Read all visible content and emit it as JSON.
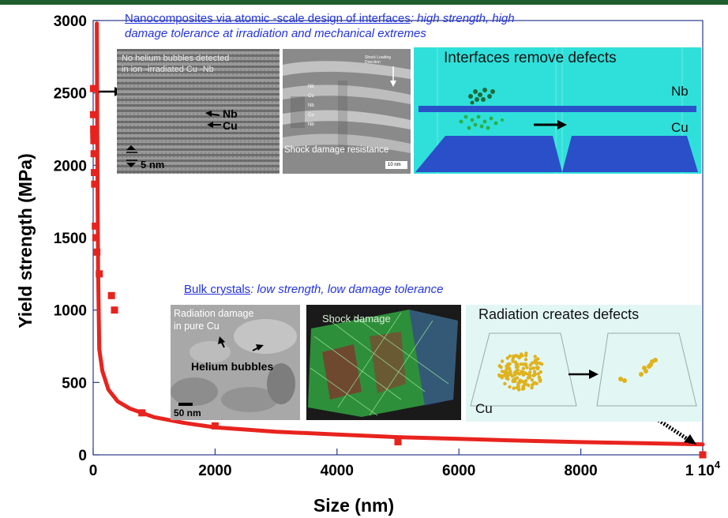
{
  "chart_data": {
    "type": "scatter",
    "xlabel": "Size (nm)",
    "ylabel": "Yield strength (MPa)",
    "xlim": [
      0,
      10000
    ],
    "ylim": [
      0,
      3000
    ],
    "x_ticks": [
      "0",
      "2000",
      "4000",
      "6000",
      "8000",
      "1 10"
    ],
    "x_tick_last_exponent": "4",
    "y_ticks": [
      "0",
      "500",
      "1000",
      "1500",
      "2000",
      "2500",
      "3000"
    ],
    "grid": false,
    "series": [
      {
        "marker": "square",
        "color": "#e8231e",
        "points": [
          {
            "x": 5,
            "y": 2530
          },
          {
            "x": 5,
            "y": 2350
          },
          {
            "x": 8,
            "y": 2250
          },
          {
            "x": 10,
            "y": 2210
          },
          {
            "x": 12,
            "y": 2170
          },
          {
            "x": 15,
            "y": 2080
          },
          {
            "x": 20,
            "y": 1950
          },
          {
            "x": 25,
            "y": 1870
          },
          {
            "x": 35,
            "y": 1580
          },
          {
            "x": 45,
            "y": 1500
          },
          {
            "x": 60,
            "y": 1400
          },
          {
            "x": 100,
            "y": 1250
          },
          {
            "x": 300,
            "y": 1100
          },
          {
            "x": 350,
            "y": 1000
          },
          {
            "x": 800,
            "y": 290
          },
          {
            "x": 2000,
            "y": 200
          },
          {
            "x": 5000,
            "y": 90
          },
          {
            "x": 10000,
            "y": 0
          }
        ]
      },
      {
        "type": "line",
        "color": "#e8231e",
        "points": [
          {
            "x": 60,
            "y": 2980
          },
          {
            "x": 70,
            "y": 2000
          },
          {
            "x": 80,
            "y": 1300
          },
          {
            "x": 100,
            "y": 730
          },
          {
            "x": 150,
            "y": 580
          },
          {
            "x": 250,
            "y": 450
          },
          {
            "x": 400,
            "y": 370
          },
          {
            "x": 600,
            "y": 320
          },
          {
            "x": 1000,
            "y": 260
          },
          {
            "x": 1500,
            "y": 220
          },
          {
            "x": 2000,
            "y": 190
          },
          {
            "x": 3000,
            "y": 160
          },
          {
            "x": 4000,
            "y": 140
          },
          {
            "x": 5000,
            "y": 122
          },
          {
            "x": 6000,
            "y": 110
          },
          {
            "x": 7000,
            "y": 98
          },
          {
            "x": 8000,
            "y": 88
          },
          {
            "x": 9000,
            "y": 80
          },
          {
            "x": 10000,
            "y": 72
          }
        ]
      }
    ],
    "annotations": {
      "nano_caption_link": "Nanocomposites   via atomic -scale design of interfaces",
      "nano_caption_rest": ": high strength, high",
      "nano_caption_line2": "damage tolerance at irradiation and mechanical extremes",
      "bulk_caption_link": "Bulk crystals",
      "bulk_caption_rest": ": low strength, low damage tolerance",
      "tem_nano_text1": "No helium bubbles detected",
      "tem_nano_text2": "in ion -irradiated Cu    -Nb",
      "tem_nano_nb": "Nb",
      "tem_nano_cu": "Cu",
      "tem_nano_scale": "5 nm",
      "shock_nano_label": "Shock damage resistance",
      "shock_nano_small": "Shock Loading Direction",
      "shock_nano_layers": [
        "Nb",
        "Cu",
        "Nb",
        "Cu",
        "Nb"
      ],
      "shock_nano_scale": "10 nm",
      "sim_nano_title": "Interfaces remove defects",
      "sim_nano_nb": "Nb",
      "sim_nano_cu": "Cu",
      "tem_bulk_text1": "Radiation damage",
      "tem_bulk_text2": "in pure Cu",
      "tem_bulk_helium": "Helium bubbles",
      "tem_bulk_scale": "50 nm",
      "shock_bulk_label": "Shock damage",
      "sim_bulk_title": "Radiation creates defects",
      "sim_bulk_cu": "Cu"
    },
    "colors": {
      "data": "#e8231e",
      "caption": "#2233dd",
      "sim_nano_bg": "#2fe0da",
      "sim_bulk_bg": "#e2f6f4",
      "frame_top": "#1e5e2e"
    }
  }
}
